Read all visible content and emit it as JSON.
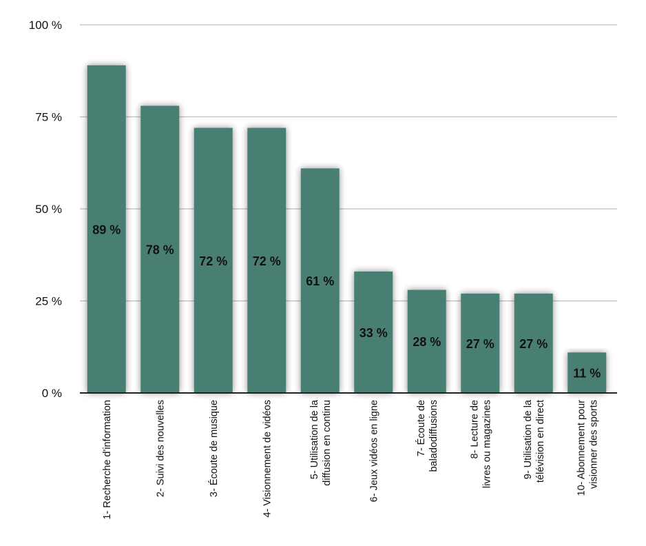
{
  "chart_data": {
    "type": "bar",
    "title": "",
    "xlabel": "",
    "ylabel": "",
    "ylim": [
      0,
      100
    ],
    "yticks": [
      {
        "value": 0,
        "label": "0 %"
      },
      {
        "value": 25,
        "label": "25 %"
      },
      {
        "value": 50,
        "label": "50 %"
      },
      {
        "value": 75,
        "label": "75 %"
      },
      {
        "value": 100,
        "label": "100 %"
      }
    ],
    "grid": true,
    "bar_color": "#4a7f72",
    "categories": [
      [
        "1- Recherche d'information"
      ],
      [
        "2- Suivi des nouvelles"
      ],
      [
        "3- Écoute de musique"
      ],
      [
        "4- Visionnement de vidéos"
      ],
      [
        "5- Utilisation de la",
        "diffusion en continu"
      ],
      [
        "6- Jeux vidéos en ligne"
      ],
      [
        "7- Écoute de",
        "baladodiffusions"
      ],
      [
        "8- Lecture de",
        "livres ou magazines"
      ],
      [
        "9- Utilisation de la",
        "télévision en direct"
      ],
      [
        "10- Abonnement pour",
        "visionner des sports"
      ]
    ],
    "values": [
      89,
      78,
      72,
      72,
      61,
      33,
      28,
      27,
      27,
      11
    ],
    "data_labels": [
      "89 %",
      "78 %",
      "72 %",
      "72 %",
      "61 %",
      "33 %",
      "28 %",
      "27 %",
      "27 %",
      "11 %"
    ]
  }
}
